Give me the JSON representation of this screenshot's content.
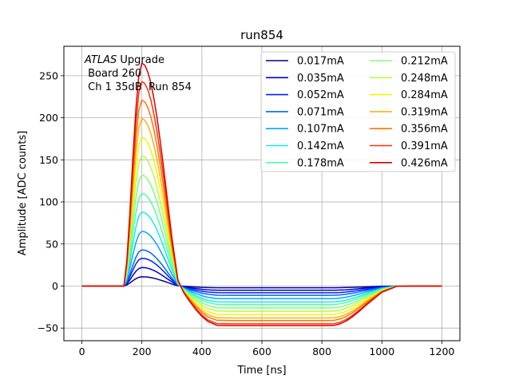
{
  "chart_data": {
    "type": "line",
    "title": "run854",
    "xlabel": "Time [ns]",
    "ylabel": "Amplitude [ADC counts]",
    "xlim": [
      -60,
      1260
    ],
    "ylim": [
      -65,
      285
    ],
    "xticks": [
      0,
      200,
      400,
      600,
      800,
      1000,
      1200
    ],
    "yticks": [
      -50,
      0,
      50,
      100,
      150,
      200,
      250
    ],
    "grid": true,
    "legend_position": "top-right",
    "legend_columns": 2,
    "annotation": {
      "italic": "ATLAS",
      "line1_rest": " Upgrade",
      "line2": " Board 260",
      "line3": " Ch 1 35dB  Run 854"
    },
    "x": [
      0,
      100,
      140,
      150,
      160,
      170,
      180,
      190,
      200,
      210,
      220,
      230,
      240,
      250,
      260,
      270,
      280,
      290,
      300,
      320,
      340,
      360,
      380,
      400,
      420,
      450,
      500,
      550,
      600,
      650,
      700,
      750,
      800,
      820,
      840,
      860,
      880,
      900,
      920,
      950,
      1000,
      1050,
      1100,
      1200
    ],
    "series": [
      {
        "name": "0.017mA",
        "color": "#00008f",
        "peak": 11,
        "undershoot": -2
      },
      {
        "name": "0.035mA",
        "color": "#0000d9",
        "peak": 22,
        "undershoot": -5
      },
      {
        "name": "0.052mA",
        "color": "#0020ff",
        "peak": 33,
        "undershoot": -8
      },
      {
        "name": "0.071mA",
        "color": "#0064ff",
        "peak": 43,
        "undershoot": -11
      },
      {
        "name": "0.107mA",
        "color": "#00a8ff",
        "peak": 65,
        "undershoot": -15
      },
      {
        "name": "0.142mA",
        "color": "#10f0e8",
        "peak": 88,
        "undershoot": -19
      },
      {
        "name": "0.178mA",
        "color": "#50ffa8",
        "peak": 110,
        "undershoot": -22
      },
      {
        "name": "0.212mA",
        "color": "#80ff78",
        "peak": 132,
        "undershoot": -26
      },
      {
        "name": "0.248mA",
        "color": "#b4ff44",
        "peak": 155,
        "undershoot": -30
      },
      {
        "name": "0.284mA",
        "color": "#f0f40c",
        "peak": 177,
        "undershoot": -34
      },
      {
        "name": "0.319mA",
        "color": "#ffb400",
        "peak": 199,
        "undershoot": -38
      },
      {
        "name": "0.356mA",
        "color": "#ff7400",
        "peak": 221,
        "undershoot": -41
      },
      {
        "name": "0.391mA",
        "color": "#ff3000",
        "peak": 243,
        "undershoot": -45
      },
      {
        "name": "0.426mA",
        "color": "#d90000",
        "peak": 265,
        "undershoot": -47
      }
    ]
  }
}
